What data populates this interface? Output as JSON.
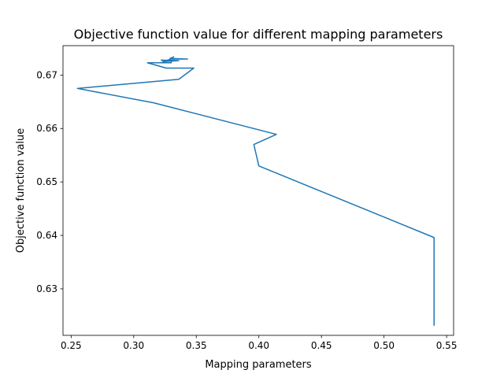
{
  "chart_data": {
    "type": "line",
    "title": "Objective function value for different mapping parameters",
    "xlabel": "Mapping parameters",
    "ylabel": "Objective function value",
    "xlim": [
      0.2435,
      0.5556
    ],
    "ylim": [
      0.6213,
      0.6755
    ],
    "xticks": [
      {
        "value": 0.25,
        "label": "0.25"
      },
      {
        "value": 0.3,
        "label": "0.30"
      },
      {
        "value": 0.35,
        "label": "0.35"
      },
      {
        "value": 0.4,
        "label": "0.40"
      },
      {
        "value": 0.45,
        "label": "0.45"
      },
      {
        "value": 0.5,
        "label": "0.50"
      },
      {
        "value": 0.55,
        "label": "0.55"
      }
    ],
    "yticks": [
      {
        "value": 0.63,
        "label": "0.63"
      },
      {
        "value": 0.64,
        "label": "0.64"
      },
      {
        "value": 0.65,
        "label": "0.65"
      },
      {
        "value": 0.66,
        "label": "0.66"
      },
      {
        "value": 0.67,
        "label": "0.67"
      }
    ],
    "grid": false,
    "legend": "none",
    "series": [
      {
        "color": "#1f77b4",
        "x": [
          0.54,
          0.54,
          0.4,
          0.396,
          0.414,
          0.316,
          0.255,
          0.336,
          0.348,
          0.326,
          0.311,
          0.33,
          0.33,
          0.322,
          0.336,
          0.323,
          0.33,
          0.343,
          0.329,
          0.332,
          0.33
        ],
        "y": [
          0.6231,
          0.6396,
          0.653,
          0.657,
          0.6589,
          0.6648,
          0.6675,
          0.6692,
          0.6713,
          0.6713,
          0.6723,
          0.6723,
          0.6727,
          0.6728,
          0.6727,
          0.6725,
          0.673,
          0.673,
          0.6731,
          0.6734,
          0.6732
        ]
      }
    ]
  }
}
